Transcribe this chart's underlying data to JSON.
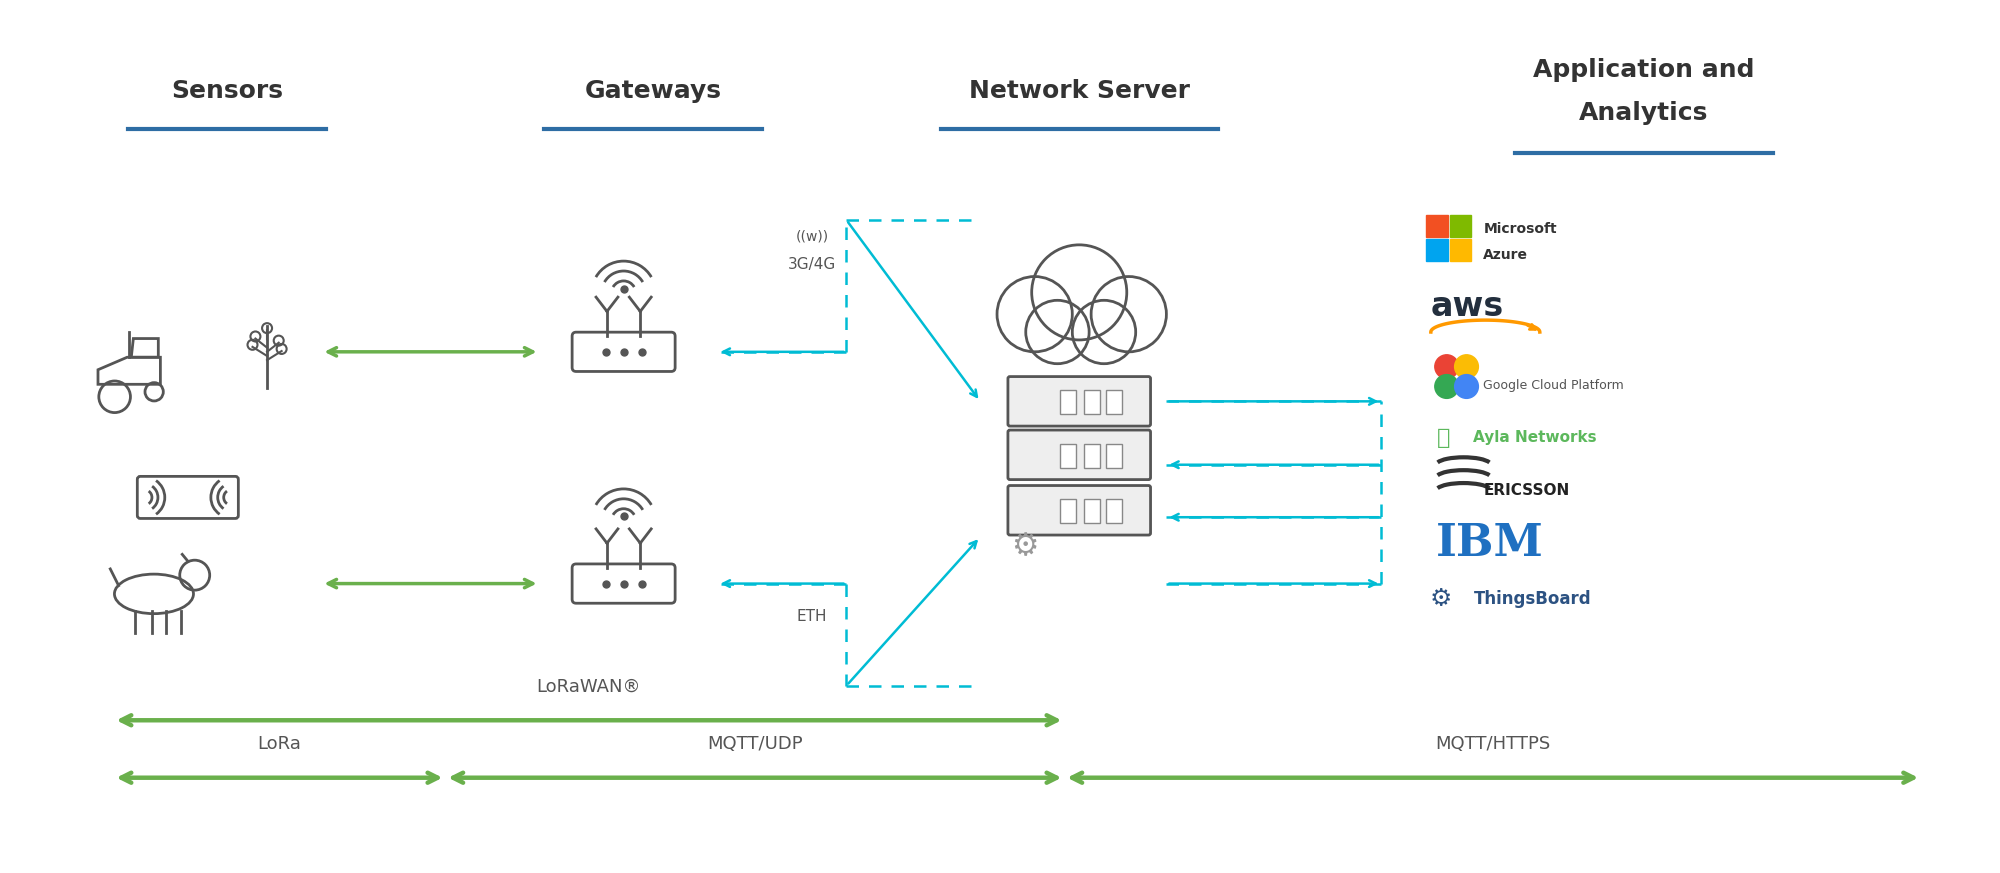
{
  "title_sensors": "Sensors",
  "title_gateways": "Gateways",
  "title_network_server": "Network Server",
  "title_app_line1": "Application and",
  "title_app_line2": "Analytics",
  "bg_color": "#ffffff",
  "header_line_color": "#2e6da4",
  "green_arrow_color": "#6ab04c",
  "cyan_arrow_color": "#00bcd4",
  "text_color": "#333333",
  "label_3g4g_top": "((w))",
  "label_3g4g_bot": "3G/4G",
  "label_eth": "ETH",
  "label_lorawan": "LoRaWAN®",
  "label_lora": "LoRa",
  "label_mqtt_udp": "MQTT/UDP",
  "label_mqtt_https": "MQTT/HTTPS",
  "ms_azure_colors": [
    "#f25022",
    "#7fba00",
    "#00a4ef",
    "#ffb900"
  ],
  "aws_color": "#ff9900",
  "ayla_color": "#5cb85c",
  "ibm_color": "#1f70c1",
  "thingsboard_color": "#2c5282",
  "icon_color": "#555555"
}
